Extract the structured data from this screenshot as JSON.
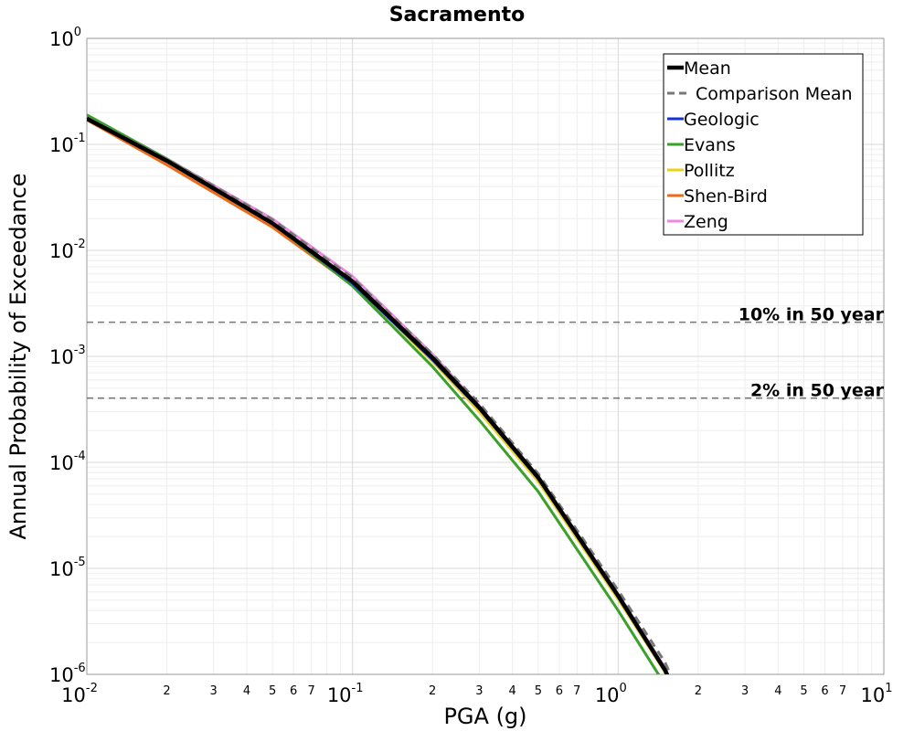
{
  "chart_data": {
    "type": "line",
    "title": "Sacramento",
    "xlabel": "PGA (g)",
    "ylabel": "Annual Probability of Exceedance",
    "x_scale": "log",
    "y_scale": "log",
    "xlim": [
      0.01,
      10
    ],
    "ylim": [
      1e-06,
      1
    ],
    "grid": true,
    "legend_position": "top-right",
    "x_major_ticks": [
      {
        "base": "10",
        "exp": "-2"
      },
      {
        "base": "10",
        "exp": "-1"
      },
      {
        "base": "10",
        "exp": "0"
      },
      {
        "base": "10",
        "exp": "1"
      }
    ],
    "y_major_ticks": [
      {
        "base": "10",
        "exp": "0"
      },
      {
        "base": "10",
        "exp": "-1"
      },
      {
        "base": "10",
        "exp": "-2"
      },
      {
        "base": "10",
        "exp": "-3"
      },
      {
        "base": "10",
        "exp": "-4"
      },
      {
        "base": "10",
        "exp": "-5"
      },
      {
        "base": "10",
        "exp": "-6"
      }
    ],
    "x_minor_tick_labels": [
      "2",
      "3",
      "4",
      "5",
      "6",
      "7"
    ],
    "reference_lines": [
      {
        "label": "10% in 50 year",
        "y": 0.0021
      },
      {
        "label": "2% in 50 year",
        "y": 0.000404
      }
    ],
    "x": [
      0.01,
      0.02,
      0.05,
      0.1,
      0.2,
      0.3,
      0.5,
      1.0,
      1.5,
      1.7
    ],
    "series": [
      {
        "name": "Mean",
        "color": "#000000",
        "style": "solid-thick",
        "values": [
          0.175,
          0.07,
          0.018,
          0.0051,
          0.00097,
          0.00033,
          7.2e-05,
          5.5e-06,
          1.1e-06,
          5.5e-07
        ]
      },
      {
        "name": "Comparison Mean",
        "color": "#777777",
        "style": "dashed",
        "values": [
          0.18,
          0.073,
          0.0195,
          0.0055,
          0.00105,
          0.00036,
          7.8e-05,
          6.2e-06,
          1.3e-06,
          6.5e-07
        ]
      },
      {
        "name": "Geologic",
        "color": "#1133dd",
        "style": "solid",
        "values": [
          0.175,
          0.07,
          0.018,
          0.0049,
          0.00093,
          0.00032,
          7e-05,
          5.4e-06,
          1.1e-06,
          5.4e-07
        ]
      },
      {
        "name": "Evans",
        "color": "#3aa02a",
        "style": "solid",
        "values": [
          0.19,
          0.073,
          0.018,
          0.0046,
          0.0008,
          0.00025,
          5.3e-05,
          4e-06,
          8e-07,
          4e-07
        ]
      },
      {
        "name": "Pollitz",
        "color": "#ead21a",
        "style": "solid",
        "values": [
          0.177,
          0.07,
          0.0178,
          0.0048,
          0.0009,
          0.0003,
          6.6e-05,
          5.1e-06,
          1.05e-06,
          5.2e-07
        ]
      },
      {
        "name": "Shen-Bird",
        "color": "#ee6a1a",
        "style": "solid",
        "values": [
          0.17,
          0.064,
          0.0165,
          0.0047,
          0.00094,
          0.00032,
          7e-05,
          5.5e-06,
          1.1e-06,
          5.5e-07
        ]
      },
      {
        "name": "Zeng",
        "color": "#ee88e0",
        "style": "solid",
        "values": [
          0.178,
          0.073,
          0.0198,
          0.0057,
          0.00105,
          0.00034,
          7.4e-05,
          5.7e-06,
          1.15e-06,
          5.7e-07
        ]
      }
    ]
  }
}
